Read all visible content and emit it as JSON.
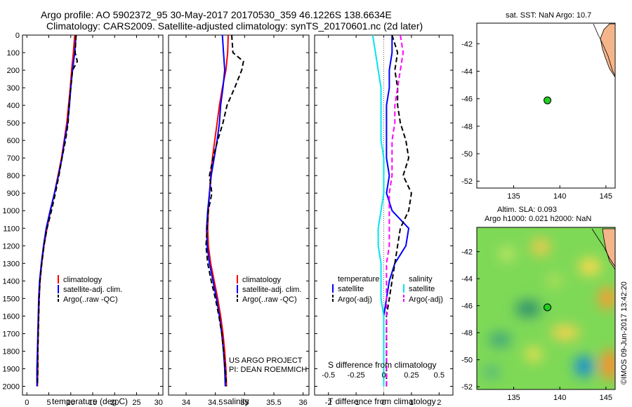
{
  "header": {
    "line1": "Argo profile: AO 5902372_95 30-May-2017 20170530_359 46.1226S 138.6634E",
    "line2": "Climatology: CARS2009. Satellite-adjusted climatology: synTS_20170601.nc (2d later)"
  },
  "colors": {
    "climatology": "#ff0000",
    "satellite": "#0000ff",
    "argo": "#000000",
    "salinity_satellite": "#00e5ee",
    "salinity_argo": "#ff00ff",
    "land": "#f5b58a",
    "marker": "#22cc22"
  },
  "chart_data": [
    {
      "type": "line",
      "name": "temperature-panel",
      "xlabel": "temperature (deg C)",
      "ylabel": "",
      "xlim": [
        -1,
        31
      ],
      "ylim": [
        2050,
        0
      ],
      "xticks": [
        0,
        5,
        10,
        15,
        20,
        25,
        30
      ],
      "yticks": [
        0,
        100,
        200,
        300,
        400,
        500,
        600,
        700,
        800,
        900,
        1000,
        1100,
        1200,
        1300,
        1400,
        1500,
        1600,
        1700,
        1800,
        1900,
        2000
      ],
      "legend": [
        "climatology",
        "satellite-adj. clim.",
        "Argo(..raw -QC)"
      ],
      "series": [
        {
          "name": "climatology",
          "color": "red",
          "dash": false,
          "x": [
            10.9,
            10.6,
            10.2,
            9.9,
            9.5,
            9.1,
            8.5,
            7.9,
            7.1,
            6.3,
            5.4,
            4.6,
            3.9,
            3.4,
            3.0,
            2.8,
            2.7,
            2.6,
            2.5,
            2.5,
            2.4
          ],
          "y": [
            0,
            100,
            200,
            300,
            400,
            500,
            600,
            700,
            800,
            900,
            1000,
            1100,
            1200,
            1300,
            1400,
            1500,
            1600,
            1700,
            1800,
            1900,
            2000
          ]
        },
        {
          "name": "satellite-adj. clim.",
          "color": "blue",
          "dash": false,
          "x": [
            11.2,
            10.9,
            10.4,
            10.0,
            9.7,
            9.3,
            8.6,
            8.0,
            7.2,
            6.3,
            5.3,
            4.4,
            3.8,
            3.3,
            2.9,
            2.7,
            2.6,
            2.5,
            2.4,
            2.3,
            2.3
          ],
          "y": [
            0,
            100,
            200,
            300,
            400,
            500,
            600,
            700,
            800,
            900,
            1000,
            1100,
            1200,
            1300,
            1400,
            1500,
            1600,
            1700,
            1800,
            1900,
            2000
          ]
        },
        {
          "name": "Argo(..raw -QC)",
          "color": "black",
          "dash": true,
          "x": [
            11.2,
            11.0,
            11.5,
            10.4,
            10.0,
            9.6,
            9.4,
            8.8,
            8.0,
            7.3,
            6.5,
            5.6,
            4.6,
            3.9,
            3.4,
            3.0,
            2.8,
            2.7,
            2.6,
            2.5,
            2.5,
            2.4
          ],
          "y": [
            0,
            100,
            150,
            200,
            300,
            400,
            500,
            600,
            700,
            800,
            900,
            1000,
            1100,
            1200,
            1300,
            1400,
            1500,
            1600,
            1700,
            1800,
            1900,
            2000
          ]
        }
      ]
    },
    {
      "type": "line",
      "name": "salinity-panel",
      "xlabel": "salinity",
      "ylabel": "",
      "xlim": [
        33.7,
        36.1
      ],
      "ylim": [
        2050,
        0
      ],
      "xticks": [
        34,
        34.5,
        35,
        35.5,
        36
      ],
      "legend": [
        "climatology",
        "satellite-adj. clim.",
        "Argo(..raw -QC)"
      ],
      "annotation": [
        "US ARGO PROJECT",
        "PI: DEAN ROEMMICH"
      ],
      "series": [
        {
          "name": "climatology",
          "color": "red",
          "dash": false,
          "x": [
            34.72,
            34.71,
            34.68,
            34.62,
            34.57,
            34.53,
            34.49,
            34.45,
            34.42,
            34.4,
            34.38,
            34.37,
            34.38,
            34.42,
            34.48,
            34.54,
            34.59,
            34.63,
            34.66,
            34.68,
            34.69
          ],
          "y": [
            0,
            100,
            200,
            300,
            400,
            500,
            600,
            700,
            800,
            900,
            1000,
            1100,
            1200,
            1300,
            1400,
            1500,
            1600,
            1700,
            1800,
            1900,
            2000
          ]
        },
        {
          "name": "satellite-adj. clim.",
          "color": "blue",
          "dash": false,
          "x": [
            34.62,
            34.64,
            34.66,
            34.63,
            34.59,
            34.57,
            34.53,
            34.48,
            34.43,
            34.4,
            34.37,
            34.35,
            34.36,
            34.4,
            34.46,
            34.52,
            34.57,
            34.61,
            34.64,
            34.66,
            34.67
          ],
          "y": [
            0,
            100,
            200,
            300,
            400,
            500,
            600,
            700,
            800,
            900,
            1000,
            1100,
            1200,
            1300,
            1400,
            1500,
            1600,
            1700,
            1800,
            1900,
            2000
          ]
        },
        {
          "name": "Argo(..raw -QC)",
          "color": "black",
          "dash": true,
          "x": [
            34.78,
            34.8,
            34.98,
            34.95,
            34.83,
            34.7,
            34.63,
            34.54,
            34.46,
            34.4,
            34.44,
            34.38,
            34.36,
            34.34,
            34.37,
            34.43,
            34.5,
            34.56,
            34.61,
            34.64,
            34.67,
            34.69
          ],
          "y": [
            0,
            100,
            150,
            200,
            300,
            400,
            500,
            600,
            700,
            800,
            900,
            1000,
            1100,
            1200,
            1300,
            1400,
            1500,
            1600,
            1700,
            1800,
            1900,
            2000
          ]
        }
      ]
    },
    {
      "type": "line",
      "name": "difference-panel",
      "xlabel": "T difference from climatology",
      "xlabel2": "S difference from climatology",
      "xlim": [
        -2.5,
        2.5
      ],
      "ylim": [
        2050,
        0
      ],
      "xticks": [
        -2,
        -1,
        0,
        1,
        2
      ],
      "xticks2": [
        "-0.5",
        "-0.25",
        "0",
        "0.25",
        "0.5"
      ],
      "legend_temperature": [
        "temperature",
        "satellite",
        "Argo(-adj)"
      ],
      "legend_salinity": [
        "salinity",
        "satellite",
        "Argo(-adj)"
      ],
      "series": [
        {
          "name": "temperature satellite",
          "color": "blue",
          "dash": false,
          "x": [
            0.3,
            0.3,
            0.2,
            0.2,
            0.1,
            0.1,
            0.1,
            0.1,
            0.2,
            0.1,
            0.3,
            0.9,
            0.8,
            0.4,
            0.2,
            0.1,
            0.0,
            0.0,
            0.0,
            0.0,
            0.0
          ],
          "y": [
            0,
            100,
            200,
            300,
            400,
            500,
            600,
            700,
            800,
            900,
            1000,
            1100,
            1200,
            1300,
            1400,
            1500,
            1600,
            1700,
            1800,
            1900,
            2000
          ]
        },
        {
          "name": "temperature Argo(-adj)",
          "color": "black",
          "dash": true,
          "x": [
            0.3,
            0.5,
            0.4,
            0.5,
            0.5,
            0.6,
            0.8,
            0.9,
            0.7,
            1.0,
            0.9,
            0.6,
            0.5,
            0.4,
            0.3,
            0.2,
            0.1,
            0.1,
            0.1,
            0.1,
            0.1
          ],
          "y": [
            0,
            100,
            200,
            300,
            400,
            500,
            600,
            700,
            800,
            900,
            1000,
            1100,
            1200,
            1300,
            1400,
            1500,
            1600,
            1700,
            1800,
            1900,
            2000
          ]
        },
        {
          "name": "salinity satellite",
          "color": "cyan",
          "dash": false,
          "x": [
            -0.4,
            -0.3,
            -0.2,
            -0.1,
            -0.1,
            -0.1,
            -0.1,
            0.0,
            0.0,
            0.0,
            -0.1,
            -0.2,
            -0.2,
            -0.1,
            -0.1,
            -0.1,
            0.0,
            0.0,
            0.0,
            0.0,
            0.0
          ],
          "y": [
            0,
            100,
            200,
            300,
            400,
            500,
            600,
            700,
            800,
            900,
            1000,
            1100,
            1200,
            1300,
            1400,
            1500,
            1600,
            1700,
            1800,
            1900,
            2000
          ]
        },
        {
          "name": "salinity Argo(-adj)",
          "color": "magenta",
          "dash": true,
          "x": [
            0.6,
            0.7,
            0.6,
            0.5,
            0.4,
            0.4,
            0.3,
            0.3,
            0.3,
            0.2,
            0.2,
            0.2,
            0.2,
            0.1,
            0.1,
            0.1,
            0.1,
            0.1,
            0.1,
            0.1,
            0.1
          ],
          "y": [
            0,
            100,
            200,
            300,
            400,
            500,
            600,
            700,
            800,
            900,
            1000,
            1100,
            1200,
            1300,
            1400,
            1500,
            1600,
            1700,
            1800,
            1900,
            2000
          ]
        }
      ]
    },
    {
      "type": "scatter",
      "name": "sst-map",
      "title": "sat. SST: NaN Argo: 10.7",
      "xlim": [
        131,
        146
      ],
      "ylim": [
        -52.5,
        -40.5
      ],
      "xticks": [
        135,
        140,
        145
      ],
      "yticks": [
        -42,
        -44,
        -46,
        -48,
        -50,
        -52
      ],
      "points": [
        {
          "x": 138.66,
          "y": -46.12
        }
      ]
    },
    {
      "type": "heatmap",
      "name": "sla-map",
      "title": "Altim. SLA: 0.093",
      "subtitle": "Argo h1000: 0.021 h2000: NaN",
      "xlim": [
        131,
        146
      ],
      "ylim": [
        -52.2,
        -40.2
      ],
      "xticks": [
        135,
        140,
        145
      ],
      "yticks": [
        -42,
        -44,
        -46,
        -48,
        -50,
        -52
      ],
      "points": [
        {
          "x": 138.66,
          "y": -46.12
        }
      ]
    }
  ],
  "watermark": "©IMOS 09-Jun-2017 13:42:20"
}
